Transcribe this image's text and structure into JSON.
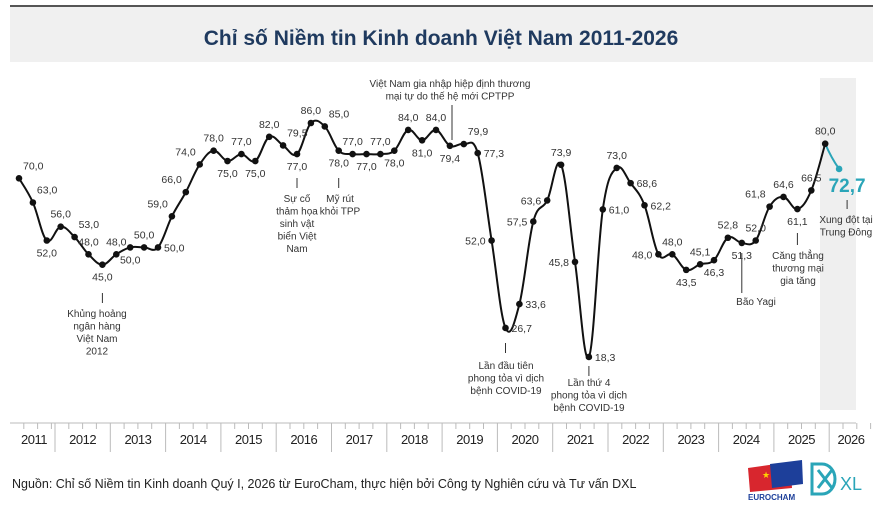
{
  "title": "Chỉ số Niềm tin Kinh doanh Việt Nam 2011-2026",
  "source": "Nguồn: Chỉ số Niềm tin Kinh doanh Quý I, 2026 từ EuroCham, thực hiện bởi Công ty Nghiên cứu và Tư vấn DXL",
  "logos": {
    "eurocham": "EUROCHAM",
    "dxl": "XL"
  },
  "colors": {
    "title": "#1f3a5f",
    "line": "#111111",
    "highlight": "#2aa5b8",
    "band": "#efefef"
  },
  "chart_data": {
    "type": "line",
    "title": "Chỉ số Niềm tin Kinh doanh Việt Nam 2011-2026",
    "xlabel": "",
    "ylabel": "",
    "x_ticks": [
      "2011",
      "2012",
      "2013",
      "2014",
      "2015",
      "2016",
      "2017",
      "2018",
      "2019",
      "2020",
      "2021",
      "2022",
      "2023",
      "2024",
      "2025",
      "2026"
    ],
    "values": [
      70.0,
      63.0,
      52.0,
      56.0,
      53.0,
      48.0,
      45.0,
      48.0,
      50.0,
      50.0,
      50.0,
      59.0,
      66.0,
      74.0,
      78.0,
      75.0,
      77.0,
      75.0,
      82.0,
      79.5,
      77.0,
      86.0,
      85.0,
      78.0,
      77.0,
      77.0,
      77.0,
      78.0,
      84.0,
      81.0,
      84.0,
      79.4,
      79.9,
      77.3,
      52.0,
      26.7,
      33.6,
      57.5,
      63.6,
      73.9,
      45.8,
      18.3,
      61.0,
      73.0,
      68.6,
      62.2,
      48.0,
      48.0,
      43.5,
      45.1,
      46.3,
      52.8,
      51.3,
      52.0,
      61.8,
      64.6,
      61.1,
      66.5,
      80.0,
      72.7
    ],
    "value_labels": [
      "70,0",
      "63,0",
      "52,0",
      "56,0",
      "53,0",
      "48,0",
      "45,0",
      "48,0",
      "50,0",
      "50,0",
      "50,0",
      "59,0",
      "66,0",
      "74,0",
      "78,0",
      "75,0",
      "77,0",
      "75,0",
      "82,0",
      "79,5",
      "77,0",
      "86,0",
      "85,0",
      "78,0",
      "77,0",
      "77,0",
      "77,0",
      "78,0",
      "84,0",
      "81,0",
      "84,0",
      "79,4",
      "79,9",
      "77,3",
      "52,0",
      "26,7",
      "33,6",
      "57,5",
      "63,6",
      "73,9",
      "45,8",
      "18,3",
      "61,0",
      "73,0",
      "68,6",
      "62,2",
      "48,0",
      "48,0",
      "43,5",
      "45,1",
      "46,3",
      "52,8",
      "51,3",
      "52,0",
      "61,8",
      "64,6",
      "61,1",
      "66,5",
      "80,0",
      "72,7"
    ],
    "highlighted_last": true,
    "shaded_period": "2026",
    "grid": false,
    "annotations": [
      {
        "point": 6,
        "lines": [
          "Khủng hoảng",
          "ngân hàng",
          "Việt Nam",
          "2012"
        ]
      },
      {
        "point": 20,
        "lines": [
          "Sự cố",
          "thảm họa",
          "sinh vật",
          "biển Việt",
          "Nam"
        ]
      },
      {
        "point": 23,
        "lines": [
          "Mỹ rút",
          "khỏi TPP"
        ]
      },
      {
        "point": 31,
        "lines": [
          "Việt Nam gia nhập hiệp định thương",
          "mại tự do thế hệ mới CPTPP"
        ]
      },
      {
        "point": 35,
        "lines": [
          "Lần đầu tiên",
          "phong tỏa vì dịch",
          "bệnh COVID-19"
        ]
      },
      {
        "point": 41,
        "lines": [
          "Lần thứ 4",
          "phong tỏa vì dịch",
          "bệnh COVID-19"
        ]
      },
      {
        "point": 52,
        "lines": [
          "Bão Yagi"
        ]
      },
      {
        "point": 56,
        "lines": [
          "Căng thẳng",
          "thương mại",
          "gia tăng"
        ]
      },
      {
        "point": 59,
        "lines": [
          "Xung đột tại",
          "Trung Đông"
        ]
      }
    ]
  }
}
